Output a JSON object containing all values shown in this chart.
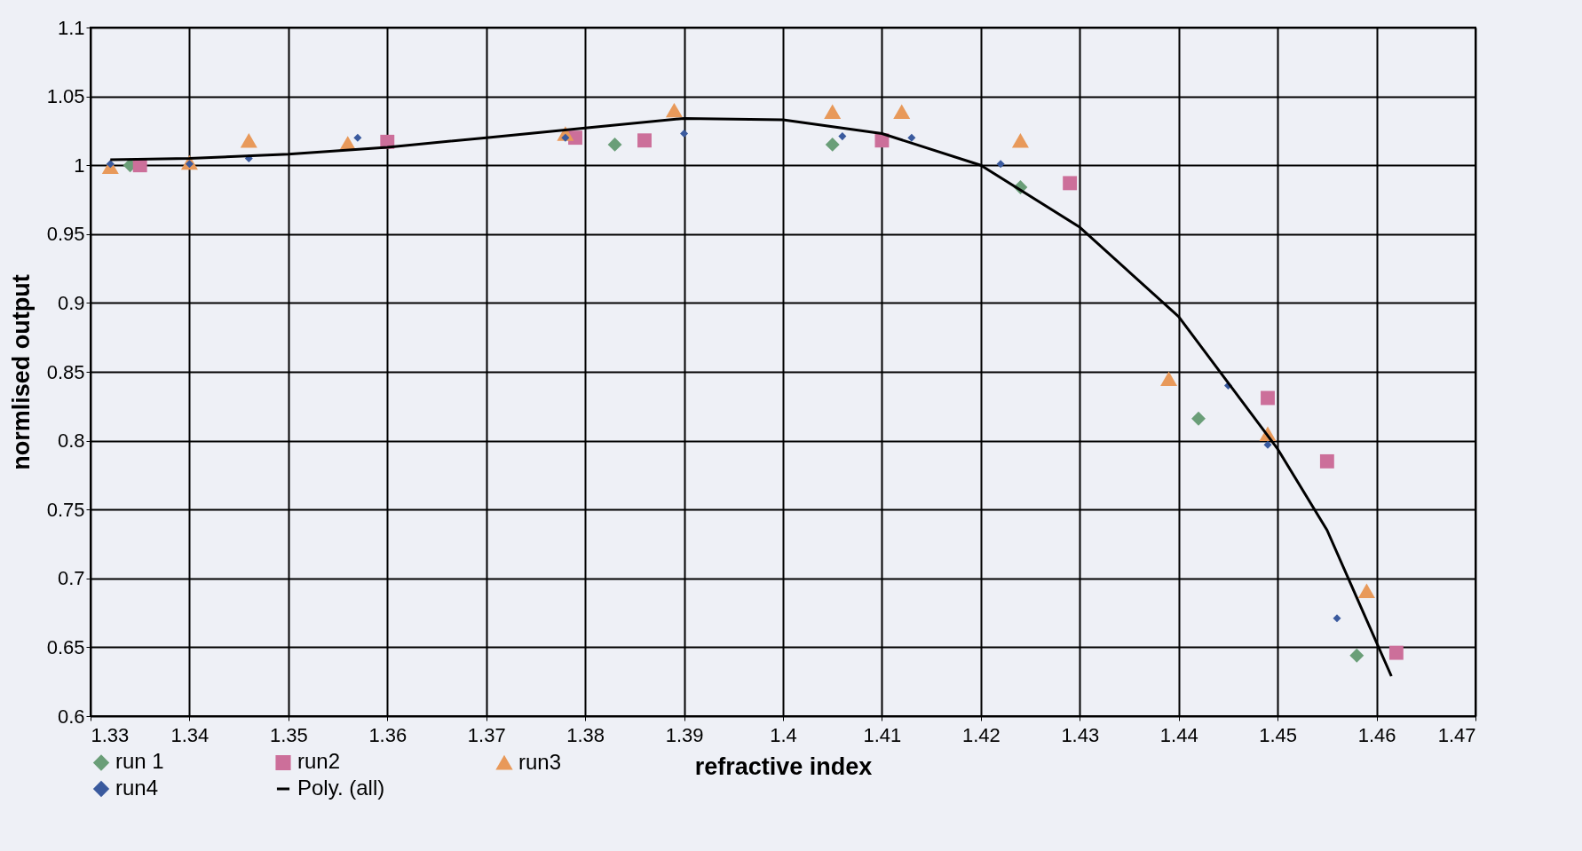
{
  "chart_data": {
    "type": "scatter",
    "xlabel": "refractive index",
    "ylabel": "normlised output",
    "xlim": [
      1.33,
      1.47
    ],
    "xticks": [
      1.33,
      1.34,
      1.35,
      1.36,
      1.37,
      1.38,
      1.39,
      1.4,
      1.41,
      1.42,
      1.43,
      1.44,
      1.45,
      1.46,
      1.47
    ],
    "ylim": [
      0.6,
      1.1
    ],
    "yticks": [
      0.6,
      0.65,
      0.7,
      0.75,
      0.8,
      0.85,
      0.9,
      0.95,
      1,
      1.05,
      1.1
    ],
    "grid": true,
    "legend": "bottom left",
    "series": [
      {
        "name": "run 1",
        "color": "#6a9e78",
        "marker": "diamond",
        "x": [
          1.334,
          1.383,
          1.405,
          1.424,
          1.442,
          1.458
        ],
        "values": [
          1.0,
          1.015,
          1.015,
          0.984,
          0.816,
          0.644
        ]
      },
      {
        "name": "run2",
        "color": "#cc6f9a",
        "marker": "square",
        "x": [
          1.335,
          1.36,
          1.379,
          1.386,
          1.41,
          1.429,
          1.449,
          1.455,
          1.462
        ],
        "values": [
          1.0,
          1.017,
          1.02,
          1.018,
          1.018,
          0.987,
          0.831,
          0.785,
          0.646
        ]
      },
      {
        "name": "run3",
        "color": "#e8995a",
        "marker": "triangle",
        "x": [
          1.332,
          1.34,
          1.346,
          1.356,
          1.378,
          1.389,
          1.405,
          1.412,
          1.424,
          1.439,
          1.449,
          1.459
        ],
        "values": [
          0.999,
          1.002,
          1.018,
          1.016,
          1.023,
          1.04,
          1.039,
          1.039,
          1.018,
          0.845,
          0.805,
          0.691
        ]
      },
      {
        "name": "run4",
        "color": "#3a5a9e",
        "marker": "diamond",
        "x": [
          1.332,
          1.34,
          1.346,
          1.357,
          1.378,
          1.39,
          1.406,
          1.413,
          1.422,
          1.445,
          1.449,
          1.456
        ],
        "values": [
          1.001,
          1.001,
          1.005,
          1.02,
          1.02,
          1.023,
          1.021,
          1.02,
          1.001,
          0.84,
          0.797,
          0.671
        ]
      },
      {
        "name": "Poly. (all)",
        "type": "line",
        "color": "#000000",
        "x": [
          1.332,
          1.34,
          1.35,
          1.36,
          1.37,
          1.38,
          1.39,
          1.4,
          1.41,
          1.42,
          1.43,
          1.44,
          1.45,
          1.455,
          1.4615
        ],
        "values": [
          1.004,
          1.005,
          1.008,
          1.013,
          1.02,
          1.027,
          1.034,
          1.033,
          1.023,
          1.0,
          0.955,
          0.89,
          0.794,
          0.735,
          0.629
        ]
      }
    ]
  }
}
